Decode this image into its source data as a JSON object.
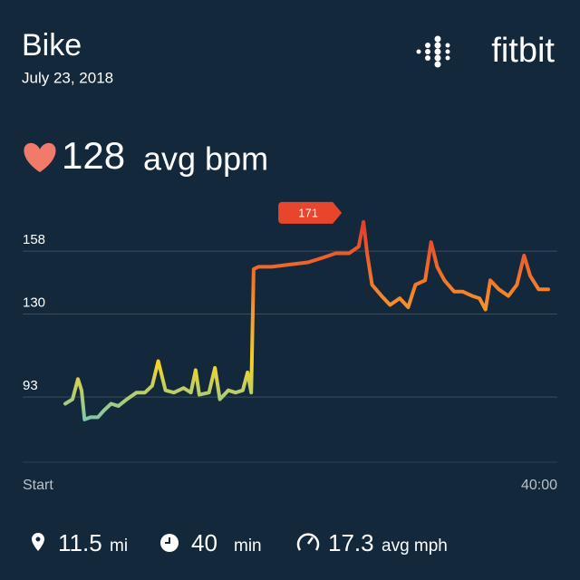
{
  "header": {
    "title": "Bike",
    "date": "July 23, 2018",
    "brand": "fitbit"
  },
  "summary": {
    "value": 128,
    "unit": "avg bpm"
  },
  "chart_data": {
    "type": "line",
    "x": [
      0,
      0.6,
      1.05,
      1.35,
      1.6,
      2.1,
      2.7,
      3.2,
      3.8,
      4.4,
      5.1,
      5.9,
      6.6,
      7.2,
      7.7,
      8.3,
      9.0,
      9.8,
      10.4,
      10.8,
      11.1,
      11.9,
      12.4,
      12.8,
      13.5,
      14.1,
      14.7,
      15.1,
      15.4,
      15.6,
      16.0,
      17.1,
      18.6,
      20.1,
      21.3,
      22.4,
      23.5,
      24.3,
      24.7,
      25.0,
      25.4,
      26.2,
      26.9,
      27.7,
      28.4,
      29.0,
      29.8,
      30.3,
      30.8,
      31.4,
      32.2,
      32.9,
      33.7,
      34.3,
      34.8,
      35.2,
      35.9,
      36.7,
      37.4,
      38.0,
      38.5,
      39.2,
      40.0
    ],
    "series": [
      {
        "name": "Heart rate",
        "gradient": [
          "#5cc4cf",
          "#f3d42a",
          "#f5862b",
          "#e5402a"
        ],
        "values": [
          90,
          92,
          101,
          96,
          83,
          84,
          84,
          87,
          90,
          89,
          92,
          95,
          95,
          98,
          109,
          96,
          95,
          97,
          95,
          105,
          94,
          95,
          106,
          92,
          96,
          95,
          96,
          104,
          95,
          150,
          151,
          151,
          152,
          153,
          155,
          157,
          157,
          160,
          171,
          157,
          143,
          138,
          134,
          137,
          133,
          143,
          145,
          162,
          151,
          145,
          140,
          140,
          138,
          137,
          132,
          145,
          141,
          138,
          143,
          156,
          147,
          141,
          141
        ]
      }
    ],
    "peak_index": 38,
    "xlim": [
      0,
      40
    ],
    "xticks": [
      {
        "value": 0,
        "label": "Start"
      },
      {
        "value": 40,
        "label": "40:00"
      }
    ],
    "ylim": [
      66,
      177
    ],
    "yticks": [
      93,
      130,
      158
    ],
    "grid": true
  },
  "stats": [
    {
      "value": 11.5,
      "unit": "mi"
    },
    {
      "value": 40,
      "unit": "min"
    },
    {
      "value": 17.3,
      "unit": "avg mph"
    }
  ]
}
